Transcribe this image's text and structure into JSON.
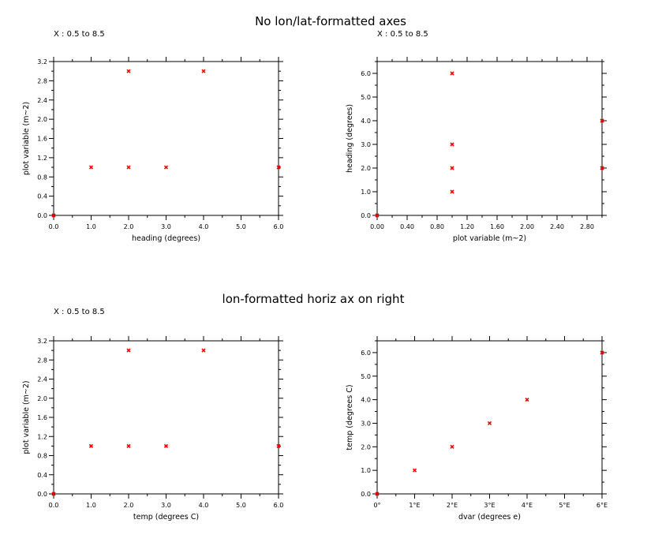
{
  "titles": {
    "top": "No lon/lat-formatted axes",
    "bottom": "lon-formatted horiz ax on right"
  },
  "colors": {
    "marker": "#ff0000",
    "axis": "#000000"
  },
  "chart_data": [
    {
      "type": "scatter",
      "subtitle": "X : 0.5 to 8.5",
      "xlabel": "heading (degrees)",
      "ylabel": "plot variable (m~2)",
      "xlim": [
        0,
        6
      ],
      "ylim": [
        0,
        3.2
      ],
      "xticks": [
        0,
        1,
        2,
        3,
        4,
        5,
        6
      ],
      "xtick_labels": [
        "0.0",
        "1.0",
        "2.0",
        "3.0",
        "4.0",
        "5.0",
        "6.0"
      ],
      "yticks": [
        0,
        0.4,
        0.8,
        1.2,
        1.6,
        2.0,
        2.4,
        2.8,
        3.2
      ],
      "ytick_labels": [
        "0.0",
        "0.4",
        "0.8",
        "1.2",
        "1.6",
        "2.0",
        "2.4",
        "2.8",
        "3.2"
      ],
      "points": [
        [
          0,
          0
        ],
        [
          1,
          1
        ],
        [
          2,
          3
        ],
        [
          2,
          1
        ],
        [
          3,
          1
        ],
        [
          4,
          3
        ],
        [
          6,
          1
        ]
      ]
    },
    {
      "type": "scatter",
      "subtitle": "X : 0.5 to 8.5",
      "xlabel": "plot variable (m~2)",
      "ylabel": "heading (degrees)",
      "xlim": [
        0,
        3
      ],
      "ylim": [
        0,
        6.5
      ],
      "xticks": [
        0,
        0.4,
        0.8,
        1.2,
        1.6,
        2.0,
        2.4,
        2.8
      ],
      "xtick_labels": [
        "0.00",
        "0.40",
        "0.80",
        "1.20",
        "1.60",
        "2.00",
        "2.40",
        "2.80"
      ],
      "yticks": [
        0,
        1,
        2,
        3,
        4,
        5,
        6
      ],
      "ytick_labels": [
        "0.0",
        "1.0",
        "2.0",
        "3.0",
        "4.0",
        "5.0",
        "6.0"
      ],
      "points": [
        [
          0,
          0
        ],
        [
          1,
          1
        ],
        [
          1,
          2
        ],
        [
          1,
          3
        ],
        [
          1,
          6
        ],
        [
          3,
          2
        ],
        [
          3,
          4
        ]
      ]
    },
    {
      "type": "scatter",
      "subtitle": "X : 0.5 to 8.5",
      "xlabel": "temp (degrees C)",
      "ylabel": "plot variable (m~2)",
      "xlim": [
        0,
        6
      ],
      "ylim": [
        0,
        3.2
      ],
      "xticks": [
        0,
        1,
        2,
        3,
        4,
        5,
        6
      ],
      "xtick_labels": [
        "0.0",
        "1.0",
        "2.0",
        "3.0",
        "4.0",
        "5.0",
        "6.0"
      ],
      "yticks": [
        0,
        0.4,
        0.8,
        1.2,
        1.6,
        2.0,
        2.4,
        2.8,
        3.2
      ],
      "ytick_labels": [
        "0.0",
        "0.4",
        "0.8",
        "1.2",
        "1.6",
        "2.0",
        "2.4",
        "2.8",
        "3.2"
      ],
      "points": [
        [
          0,
          0
        ],
        [
          1,
          1
        ],
        [
          2,
          3
        ],
        [
          2,
          1
        ],
        [
          3,
          1
        ],
        [
          4,
          3
        ],
        [
          6,
          1
        ]
      ]
    },
    {
      "type": "scatter",
      "subtitle": "",
      "xlabel": "dvar (degrees e)",
      "ylabel": "temp (degrees C)",
      "xlim": [
        0,
        6
      ],
      "ylim": [
        0,
        6.5
      ],
      "xticks": [
        0,
        1,
        2,
        3,
        4,
        5,
        6
      ],
      "xtick_labels": [
        "0°",
        "1°E",
        "2°E",
        "3°E",
        "4°E",
        "5°E",
        "6°E"
      ],
      "yticks": [
        0,
        1,
        2,
        3,
        4,
        5,
        6
      ],
      "ytick_labels": [
        "0.0",
        "1.0",
        "2.0",
        "3.0",
        "4.0",
        "5.0",
        "6.0"
      ],
      "points": [
        [
          0,
          0
        ],
        [
          1,
          1
        ],
        [
          2,
          2
        ],
        [
          3,
          3
        ],
        [
          4,
          4
        ],
        [
          6,
          6
        ]
      ]
    }
  ]
}
